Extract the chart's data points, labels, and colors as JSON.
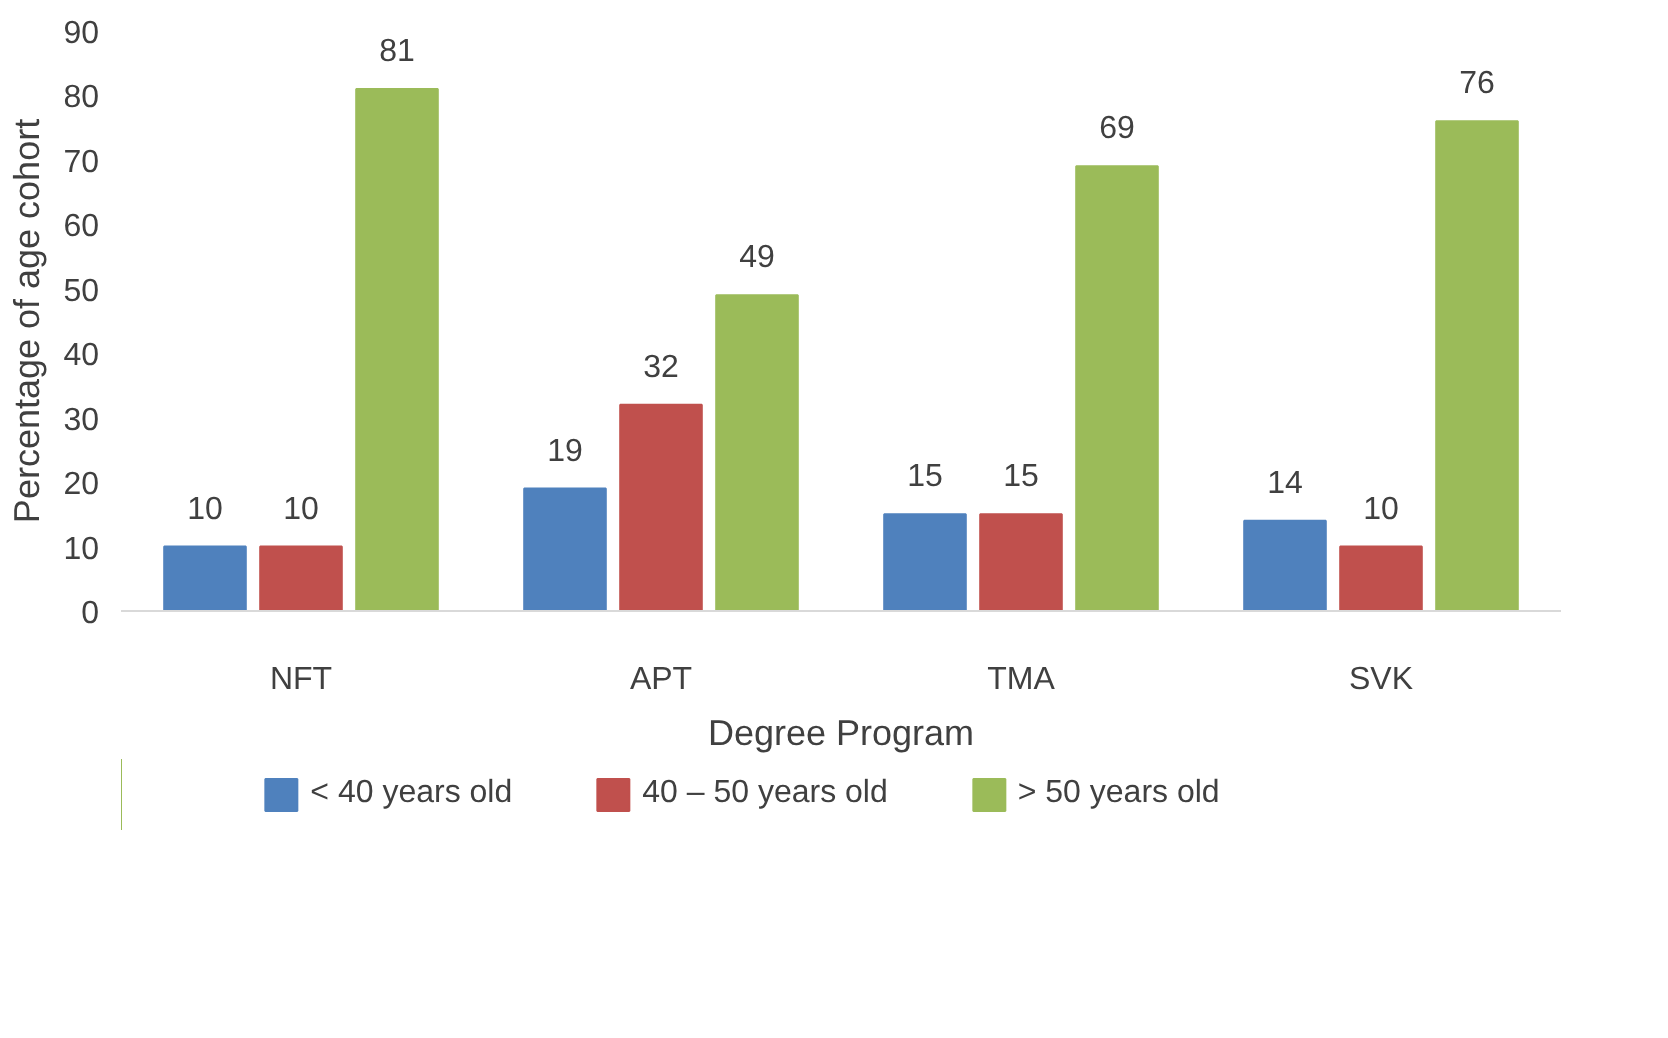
{
  "chart_data": {
    "type": "bar",
    "xlabel": "Degree Program",
    "ylabel": "Percentage of age cohort",
    "categories": [
      "NFT",
      "APT",
      "TMA",
      "SVK"
    ],
    "series": [
      {
        "name": "< 40 years old",
        "color": "#4f81bd",
        "values": [
          10,
          19,
          15,
          14
        ]
      },
      {
        "name": "40 – 50 years old",
        "color": "#c0504d",
        "values": [
          10,
          32,
          15,
          10
        ]
      },
      {
        "name": "> 50 years old",
        "color": "#9bbb59",
        "values": [
          81,
          49,
          69,
          76
        ]
      }
    ],
    "ylim": [
      0,
      90
    ],
    "yticks": [
      0,
      10,
      20,
      30,
      40,
      50,
      60,
      70,
      80,
      90
    ],
    "grid": false,
    "legend": "bottom",
    "data_labels": true
  }
}
